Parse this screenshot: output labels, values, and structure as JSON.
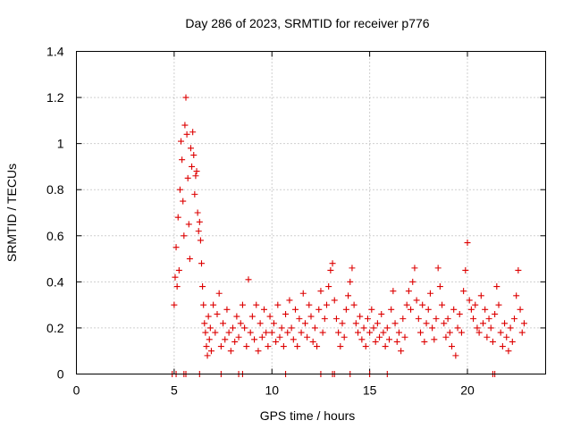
{
  "chart_data": {
    "type": "scatter",
    "title": "Day 286 of 2023, SRMTID for receiver p776",
    "xlabel": "GPS time / hours",
    "ylabel": "SRMTID / TECUs",
    "xlim": [
      0,
      24
    ],
    "ylim": [
      0,
      1.4
    ],
    "xticks": [
      0,
      5,
      10,
      15,
      20
    ],
    "yticks": [
      0,
      0.2,
      0.4,
      0.6,
      0.8,
      1,
      1.2,
      1.4
    ],
    "xtick_labels": [
      "0",
      "5",
      "10",
      "15",
      "20"
    ],
    "ytick_labels": [
      "0",
      "0.2",
      "0.4",
      "0.6",
      "0.8",
      "1",
      "1.2",
      "1.4"
    ],
    "grid": true,
    "marker": "plus",
    "color": "#dd0000",
    "series": [
      {
        "name": "SRMTID",
        "points": [
          [
            5.0,
            0.3
          ],
          [
            5.05,
            0.42
          ],
          [
            5.1,
            0.55
          ],
          [
            5.15,
            0.38
          ],
          [
            5.2,
            0.68
          ],
          [
            5.25,
            0.45
          ],
          [
            5.3,
            0.8
          ],
          [
            5.35,
            1.01
          ],
          [
            5.4,
            0.93
          ],
          [
            5.45,
            0.75
          ],
          [
            5.5,
            0.6
          ],
          [
            5.55,
            1.08
          ],
          [
            5.6,
            1.2
          ],
          [
            5.65,
            1.04
          ],
          [
            5.7,
            0.85
          ],
          [
            5.75,
            0.65
          ],
          [
            5.8,
            0.5
          ],
          [
            5.85,
            0.98
          ],
          [
            5.9,
            0.9
          ],
          [
            5.95,
            1.05
          ],
          [
            6.0,
            0.95
          ],
          [
            6.05,
            0.78
          ],
          [
            6.1,
            0.86
          ],
          [
            6.15,
            0.88
          ],
          [
            6.2,
            0.7
          ],
          [
            6.25,
            0.62
          ],
          [
            6.3,
            0.66
          ],
          [
            6.35,
            0.58
          ],
          [
            6.4,
            0.48
          ],
          [
            6.45,
            0.38
          ],
          [
            6.5,
            0.3
          ],
          [
            6.55,
            0.22
          ],
          [
            6.6,
            0.18
          ],
          [
            6.65,
            0.12
          ],
          [
            6.7,
            0.08
          ],
          [
            6.75,
            0.25
          ],
          [
            6.8,
            0.15
          ],
          [
            6.85,
            0.2
          ],
          [
            6.9,
            0.1
          ],
          [
            7.0,
            0.3
          ],
          [
            7.1,
            0.18
          ],
          [
            7.2,
            0.26
          ],
          [
            7.3,
            0.35
          ],
          [
            7.4,
            0.12
          ],
          [
            7.5,
            0.22
          ],
          [
            7.6,
            0.15
          ],
          [
            7.7,
            0.28
          ],
          [
            7.8,
            0.18
          ],
          [
            7.9,
            0.1
          ],
          [
            8.0,
            0.2
          ],
          [
            8.1,
            0.14
          ],
          [
            8.2,
            0.25
          ],
          [
            8.3,
            0.16
          ],
          [
            8.4,
            0.22
          ],
          [
            8.5,
            0.3
          ],
          [
            8.6,
            0.2
          ],
          [
            8.7,
            0.12
          ],
          [
            8.8,
            0.41
          ],
          [
            8.9,
            0.18
          ],
          [
            9.0,
            0.25
          ],
          [
            9.1,
            0.15
          ],
          [
            9.2,
            0.3
          ],
          [
            9.3,
            0.1
          ],
          [
            9.4,
            0.22
          ],
          [
            9.5,
            0.16
          ],
          [
            9.6,
            0.28
          ],
          [
            9.7,
            0.18
          ],
          [
            9.8,
            0.12
          ],
          [
            9.9,
            0.25
          ],
          [
            10.0,
            0.18
          ],
          [
            10.1,
            0.22
          ],
          [
            10.2,
            0.14
          ],
          [
            10.3,
            0.3
          ],
          [
            10.4,
            0.16
          ],
          [
            10.5,
            0.2
          ],
          [
            10.6,
            0.12
          ],
          [
            10.7,
            0.26
          ],
          [
            10.8,
            0.18
          ],
          [
            10.9,
            0.32
          ],
          [
            11.0,
            0.2
          ],
          [
            11.1,
            0.15
          ],
          [
            11.2,
            0.28
          ],
          [
            11.3,
            0.12
          ],
          [
            11.4,
            0.24
          ],
          [
            11.5,
            0.18
          ],
          [
            11.6,
            0.35
          ],
          [
            11.7,
            0.22
          ],
          [
            11.8,
            0.16
          ],
          [
            11.9,
            0.3
          ],
          [
            12.0,
            0.25
          ],
          [
            12.1,
            0.14
          ],
          [
            12.2,
            0.2
          ],
          [
            12.3,
            0.12
          ],
          [
            12.4,
            0.28
          ],
          [
            12.5,
            0.36
          ],
          [
            12.6,
            0.18
          ],
          [
            12.7,
            0.24
          ],
          [
            12.8,
            0.3
          ],
          [
            12.9,
            0.38
          ],
          [
            13.0,
            0.45
          ],
          [
            13.1,
            0.48
          ],
          [
            13.2,
            0.32
          ],
          [
            13.3,
            0.24
          ],
          [
            13.4,
            0.18
          ],
          [
            13.5,
            0.12
          ],
          [
            13.6,
            0.22
          ],
          [
            13.7,
            0.16
          ],
          [
            13.8,
            0.28
          ],
          [
            13.9,
            0.34
          ],
          [
            14.0,
            0.4
          ],
          [
            14.1,
            0.46
          ],
          [
            14.2,
            0.3
          ],
          [
            14.3,
            0.22
          ],
          [
            14.4,
            0.18
          ],
          [
            14.5,
            0.25
          ],
          [
            14.6,
            0.15
          ],
          [
            14.7,
            0.2
          ],
          [
            14.8,
            0.12
          ],
          [
            14.9,
            0.24
          ],
          [
            15.0,
            0.18
          ],
          [
            15.1,
            0.28
          ],
          [
            15.2,
            0.2
          ],
          [
            15.3,
            0.14
          ],
          [
            15.4,
            0.22
          ],
          [
            15.5,
            0.16
          ],
          [
            15.6,
            0.26
          ],
          [
            15.7,
            0.18
          ],
          [
            15.8,
            0.12
          ],
          [
            15.9,
            0.2
          ],
          [
            16.0,
            0.15
          ],
          [
            16.1,
            0.28
          ],
          [
            16.2,
            0.36
          ],
          [
            16.3,
            0.22
          ],
          [
            16.4,
            0.14
          ],
          [
            16.5,
            0.18
          ],
          [
            16.6,
            0.1
          ],
          [
            16.7,
            0.24
          ],
          [
            16.8,
            0.16
          ],
          [
            16.9,
            0.3
          ],
          [
            17.0,
            0.36
          ],
          [
            17.1,
            0.28
          ],
          [
            17.2,
            0.4
          ],
          [
            17.3,
            0.46
          ],
          [
            17.4,
            0.32
          ],
          [
            17.5,
            0.24
          ],
          [
            17.6,
            0.18
          ],
          [
            17.7,
            0.3
          ],
          [
            17.8,
            0.14
          ],
          [
            17.9,
            0.22
          ],
          [
            18.0,
            0.28
          ],
          [
            18.1,
            0.35
          ],
          [
            18.2,
            0.2
          ],
          [
            18.3,
            0.15
          ],
          [
            18.4,
            0.24
          ],
          [
            18.5,
            0.46
          ],
          [
            18.6,
            0.38
          ],
          [
            18.7,
            0.3
          ],
          [
            18.8,
            0.22
          ],
          [
            18.9,
            0.16
          ],
          [
            19.0,
            0.24
          ],
          [
            19.1,
            0.18
          ],
          [
            19.2,
            0.12
          ],
          [
            19.3,
            0.28
          ],
          [
            19.4,
            0.08
          ],
          [
            19.5,
            0.2
          ],
          [
            19.6,
            0.26
          ],
          [
            19.7,
            0.18
          ],
          [
            19.8,
            0.36
          ],
          [
            19.9,
            0.45
          ],
          [
            20.0,
            0.57
          ],
          [
            20.1,
            0.32
          ],
          [
            20.2,
            0.28
          ],
          [
            20.3,
            0.24
          ],
          [
            20.4,
            0.3
          ],
          [
            20.5,
            0.2
          ],
          [
            20.6,
            0.18
          ],
          [
            20.7,
            0.34
          ],
          [
            20.8,
            0.22
          ],
          [
            20.9,
            0.28
          ],
          [
            21.0,
            0.16
          ],
          [
            21.1,
            0.24
          ],
          [
            21.2,
            0.2
          ],
          [
            21.3,
            0.14
          ],
          [
            21.4,
            0.26
          ],
          [
            21.5,
            0.38
          ],
          [
            21.6,
            0.3
          ],
          [
            21.7,
            0.18
          ],
          [
            21.8,
            0.12
          ],
          [
            21.9,
            0.22
          ],
          [
            22.0,
            0.16
          ],
          [
            22.1,
            0.1
          ],
          [
            22.2,
            0.2
          ],
          [
            22.3,
            0.14
          ],
          [
            22.4,
            0.24
          ],
          [
            22.5,
            0.34
          ],
          [
            22.6,
            0.45
          ],
          [
            22.7,
            0.28
          ],
          [
            22.8,
            0.18
          ],
          [
            22.9,
            0.22
          ]
        ],
        "baseline_points_x": [
          4.9,
          5.1,
          5.5,
          5.6,
          6.3,
          7.4,
          8.3,
          8.5,
          10.7,
          12.5,
          13.1,
          13.2,
          14.0,
          15.0,
          15.9,
          21.3,
          21.4
        ]
      }
    ]
  }
}
